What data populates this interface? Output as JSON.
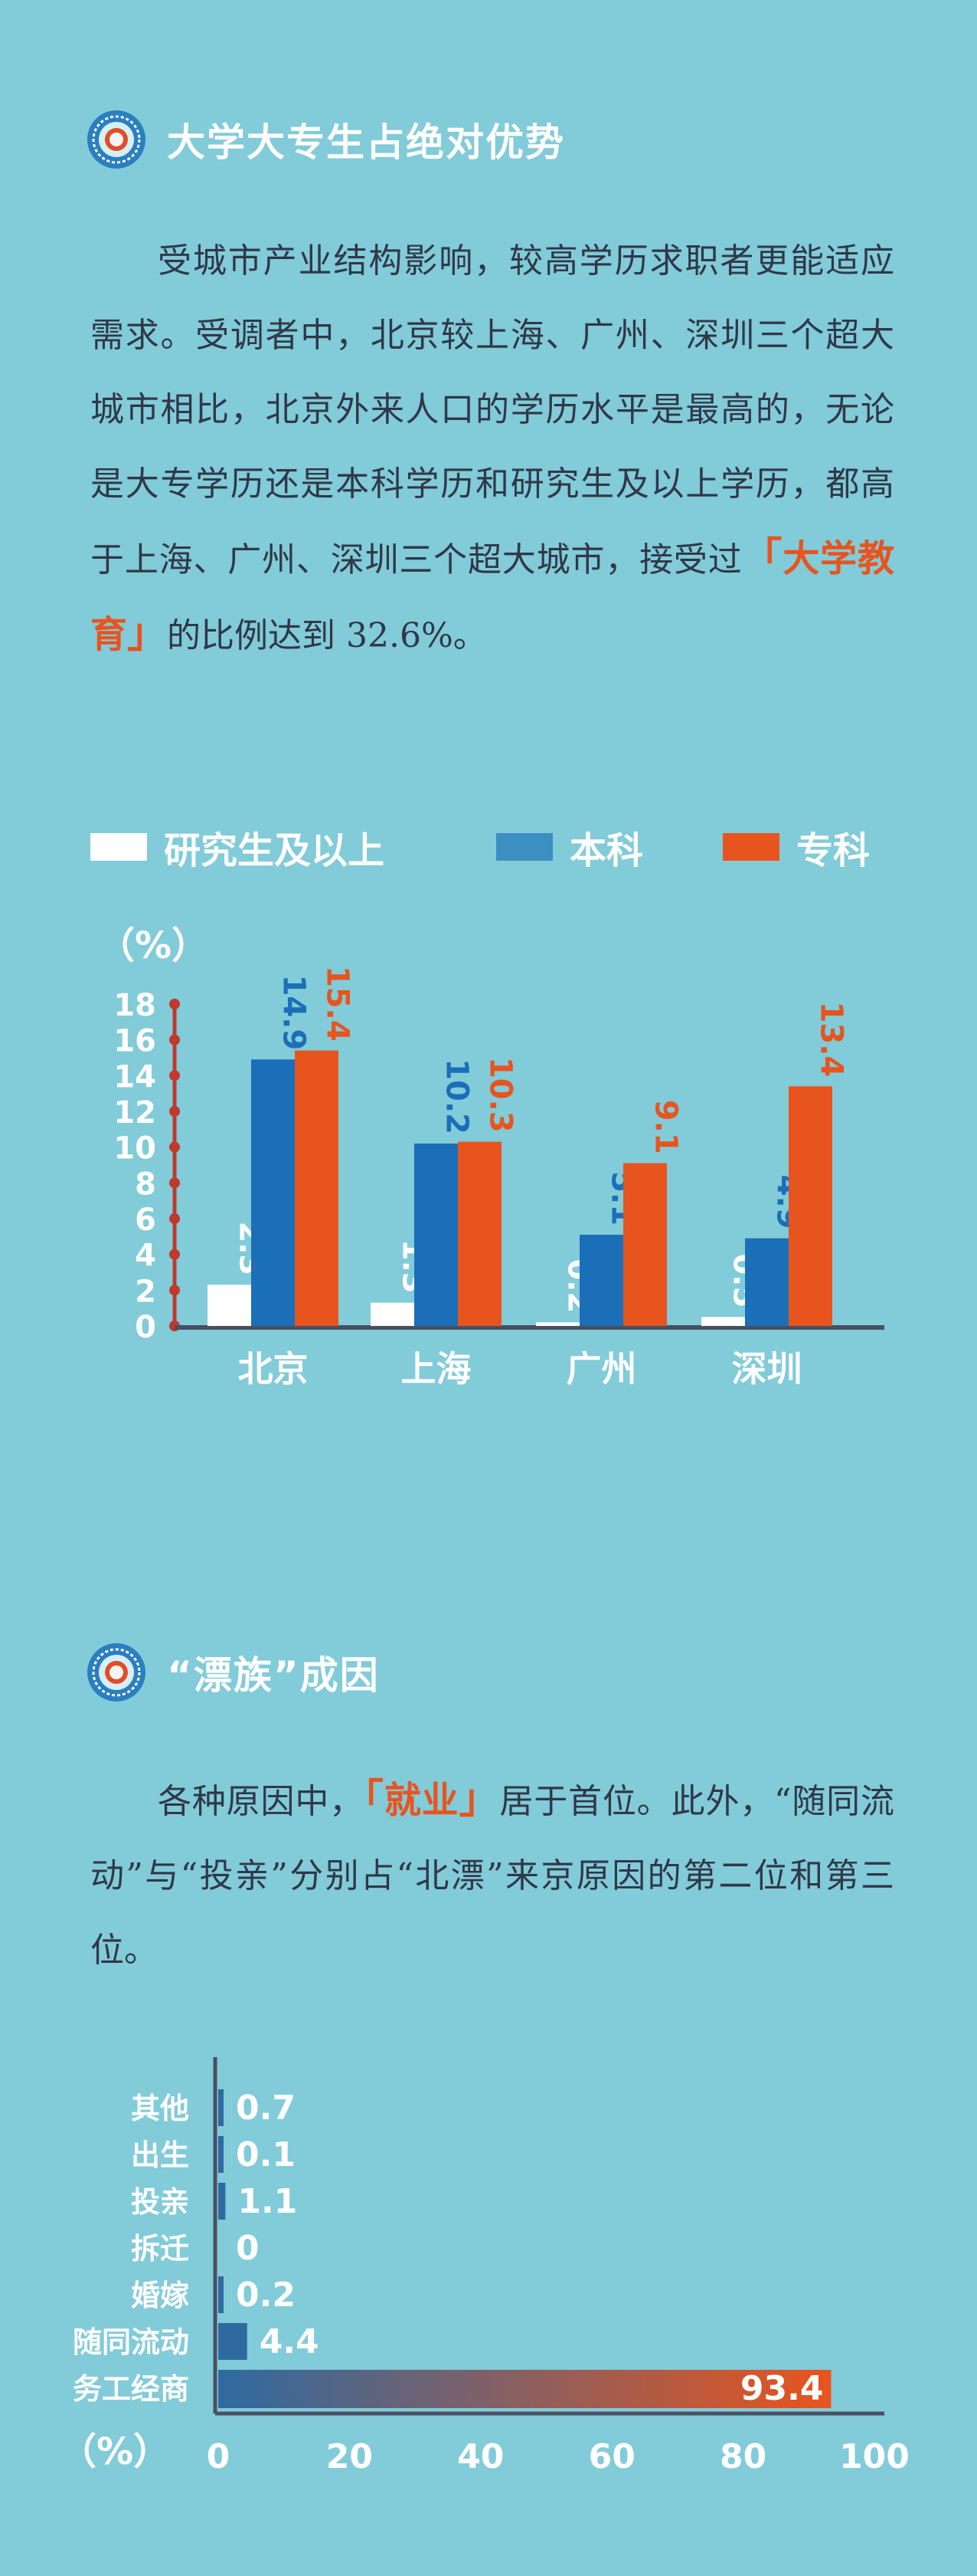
{
  "section1": {
    "title": "大学大专生占绝对优势",
    "paragraph_pre": "受城市产业结构影响，较高学历求职者更能适应需求。受调者中，北京较上海、广州、深圳三个超大城市相比，北京外来人口的学历水平是最高的，无论是大专学历还是本科学历和研究生及以上学历，都高于上海、广州、深圳三个超大城市，接受过",
    "bracket_open": "「",
    "highlight": "大学教育",
    "bracket_close": "」",
    "paragraph_post": "的比例达到 32.6%。"
  },
  "section2": {
    "title": "“漂族”成因",
    "paragraph_pre": "各种原因中，",
    "bracket_open": "「",
    "highlight": "就业",
    "bracket_close": "」",
    "paragraph_post": "居于首位。此外，“随同流动”与“投亲”分别占“北漂”来京原因的第二位和第三位。"
  },
  "colors": {
    "background": "#82cbd9",
    "graduate": "#ffffff",
    "bachelor": "#1a6fb8",
    "junior_college": "#e8541e",
    "axis": "#4a4f63",
    "title_text": "#ffffff",
    "body_text": "#303848",
    "highlight": "#e8541e"
  },
  "chart_data": [
    {
      "type": "bar",
      "unit_label": "（%）",
      "categories": [
        "北京",
        "上海",
        "广州",
        "深圳"
      ],
      "series": [
        {
          "name": "研究生及以上",
          "color": "#ffffff",
          "values": [
            2.3,
            1.3,
            0.2,
            0.5
          ]
        },
        {
          "name": "本科",
          "color": "#1a6fb8",
          "values": [
            14.9,
            10.2,
            5.1,
            4.9
          ]
        },
        {
          "name": "专科",
          "color": "#e8541e",
          "values": [
            15.4,
            10.3,
            9.1,
            13.4
          ]
        }
      ],
      "legend_swatch_colors": [
        "#ffffff",
        "#3b8fc1",
        "#e8541e"
      ],
      "ylim": [
        0,
        18
      ],
      "yticks": [
        0,
        2,
        4,
        6,
        8,
        10,
        12,
        14,
        16,
        18
      ],
      "legend_position": "top"
    },
    {
      "type": "bar",
      "orientation": "horizontal",
      "unit_label": "（%）",
      "categories": [
        "其他",
        "出生",
        "投亲",
        "拆迁",
        "婚嫁",
        "随同流动",
        "务工经商"
      ],
      "values": [
        0.7,
        0.1,
        1.1,
        0,
        0.2,
        4.4,
        93.4
      ],
      "value_labels": [
        "0.7",
        "0.1",
        "1.1",
        "0",
        "0.2",
        "4.4",
        "93.4"
      ],
      "xlim": [
        0,
        100
      ],
      "xticks": [
        0,
        20,
        40,
        60,
        80,
        100
      ],
      "bar_gradient": [
        "#2e6aa0",
        "#e8541e"
      ]
    }
  ]
}
